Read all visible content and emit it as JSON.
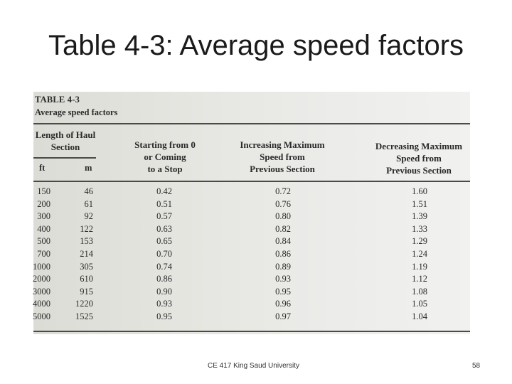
{
  "slide": {
    "title": "Table 4-3: Average speed factors",
    "footer_text": "CE 417 King Saud University",
    "page_number": "58"
  },
  "table": {
    "label": "TABLE 4-3",
    "caption": "Average speed factors",
    "headers": {
      "length": [
        "Length of Haul",
        "Section"
      ],
      "ft": "ft",
      "m": "m",
      "starting": [
        "Starting from 0",
        "or Coming",
        "to a Stop"
      ],
      "increasing": [
        "Increasing Maximum",
        "Speed from",
        "Previous Section"
      ],
      "decreasing": [
        "Decreasing Maximum",
        "Speed from",
        "Previous Section"
      ]
    },
    "rows": [
      [
        "150",
        "46",
        "0.42",
        "0.72",
        "1.60"
      ],
      [
        "200",
        "61",
        "0.51",
        "0.76",
        "1.51"
      ],
      [
        "300",
        "92",
        "0.57",
        "0.80",
        "1.39"
      ],
      [
        "400",
        "122",
        "0.63",
        "0.82",
        "1.33"
      ],
      [
        "500",
        "153",
        "0.65",
        "0.84",
        "1.29"
      ],
      [
        "700",
        "214",
        "0.70",
        "0.86",
        "1.24"
      ],
      [
        "1000",
        "305",
        "0.74",
        "0.89",
        "1.19"
      ],
      [
        "2000",
        "610",
        "0.86",
        "0.93",
        "1.12"
      ],
      [
        "3000",
        "915",
        "0.90",
        "0.95",
        "1.08"
      ],
      [
        "4000",
        "1220",
        "0.93",
        "0.96",
        "1.05"
      ],
      [
        "5000",
        "1525",
        "0.95",
        "0.97",
        "1.04"
      ]
    ]
  }
}
